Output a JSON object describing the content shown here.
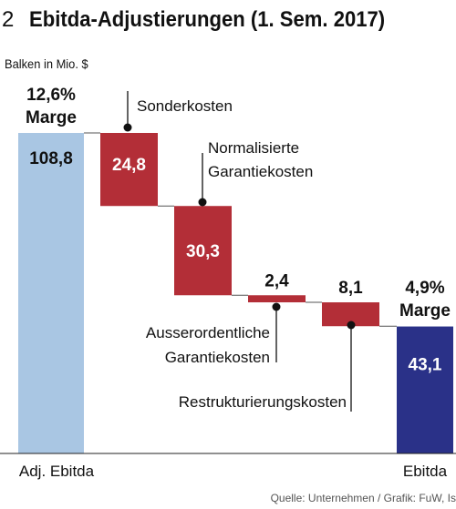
{
  "header": {
    "number": "2",
    "title": "Ebitda-Adjustierungen (1. Sem. 2017)"
  },
  "unit_label": "Balken in Mio. $",
  "source": "Quelle: Unternehmen / Grafik: FuW, Is",
  "chart_data": {
    "type": "bar",
    "subtype": "waterfall",
    "categories": [
      "Adj. Ebitda",
      "Sonderkosten",
      "Normalisierte Garantiekosten",
      "Ausserordentliche Garantiekosten",
      "Restrukturierungskosten",
      "Ebitda"
    ],
    "values": [
      108.8,
      -24.8,
      -30.3,
      -2.4,
      -8.1,
      43.1
    ],
    "value_labels": [
      "108,8",
      "24,8",
      "30,3",
      "2,4",
      "8,1",
      "43,1"
    ],
    "axis_labels": [
      "Adj. Ebitda",
      "",
      "",
      "",
      "",
      "Ebitda"
    ],
    "annotations": [
      {
        "text": "Sonderkosten",
        "lines": [
          "Sonderkosten"
        ]
      },
      {
        "text": "Normalisierte Garantiekosten",
        "lines": [
          "Normalisierte",
          "Garantiekosten"
        ]
      },
      {
        "text": "Ausserordentliche Garantiekosten",
        "lines": [
          "Ausserordentliche",
          "Garantiekosten"
        ]
      },
      {
        "text": "Restrukturierungskosten",
        "lines": [
          "Restrukturierungskosten"
        ]
      }
    ],
    "margins": [
      {
        "value": "12,6%",
        "label": "Marge"
      },
      {
        "value": "4,9%",
        "label": "Marge"
      }
    ],
    "ylim": [
      0,
      108.8
    ],
    "colors": {
      "start": "#a9c6e3",
      "decrease": "#b32e37",
      "end": "#2a3188"
    }
  }
}
